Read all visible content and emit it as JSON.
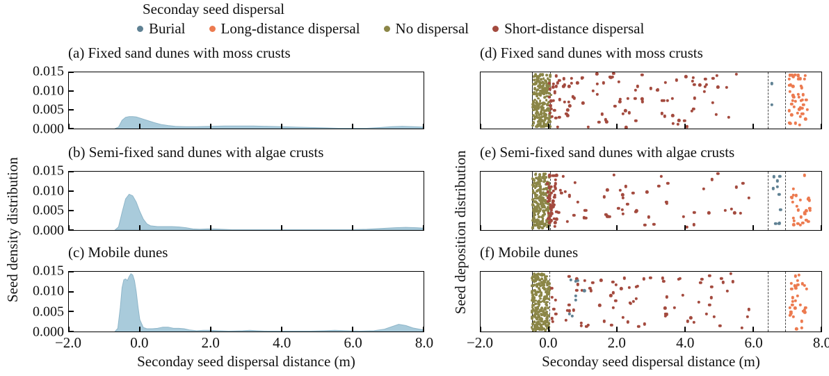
{
  "legend": {
    "title": "Seconday seed dispersal",
    "items": [
      {
        "label": "Burial",
        "color": "#5f8193"
      },
      {
        "label": "Long-distance dispersal",
        "color": "#ec7a4f"
      },
      {
        "label": "No dispersal",
        "color": "#8b8647"
      },
      {
        "label": "Short-distance dispersal",
        "color": "#a34a3e"
      }
    ]
  },
  "axes": {
    "x_label": "Seconday seed dispersal distance (m)",
    "x_range": [
      -2,
      8
    ],
    "x_ticks": [
      "−2.0",
      "0.0",
      "2.0",
      "4.0",
      "6.0",
      "8.0"
    ],
    "x_tick_values": [
      -2,
      0,
      2,
      4,
      6,
      8
    ],
    "left_y_label": "Seed density distribution",
    "right_y_label": "Seed deposition distribution",
    "left_y_range": [
      0,
      0.015
    ],
    "left_y_ticks": [
      "0.000",
      "0.005",
      "0.010",
      "0.015"
    ],
    "left_y_tick_values": [
      0,
      0.005,
      0.01,
      0.015
    ],
    "area_fill_color": "#a9cbdb",
    "area_edge_color": "#8fb6c9"
  },
  "chart_data": [
    {
      "id": "a",
      "type": "area",
      "title": "(a) Fixed sand dunes with moss crusts",
      "points": [
        [
          -0.7,
          0
        ],
        [
          -0.6,
          0.0004
        ],
        [
          -0.5,
          0.0022
        ],
        [
          -0.4,
          0.003
        ],
        [
          -0.3,
          0.0032
        ],
        [
          -0.2,
          0.0032
        ],
        [
          -0.1,
          0.0031
        ],
        [
          0,
          0.0028
        ],
        [
          0.2,
          0.0022
        ],
        [
          0.4,
          0.0016
        ],
        [
          0.6,
          0.0011
        ],
        [
          0.8,
          0.0008
        ],
        [
          1.0,
          0.0006
        ],
        [
          1.3,
          0.0005
        ],
        [
          1.6,
          0.0005
        ],
        [
          2.0,
          0.0006
        ],
        [
          2.4,
          0.0007
        ],
        [
          2.8,
          0.0007
        ],
        [
          3.2,
          0.0007
        ],
        [
          3.6,
          0.0006
        ],
        [
          4.0,
          0.0005
        ],
        [
          4.4,
          0.0004
        ],
        [
          4.8,
          0.0003
        ],
        [
          5.2,
          0.0002
        ],
        [
          5.6,
          0.0001
        ],
        [
          6.0,
          0.0001
        ],
        [
          6.4,
          0.0001
        ],
        [
          6.8,
          0.0003
        ],
        [
          7.1,
          0.0005
        ],
        [
          7.4,
          0.0006
        ],
        [
          7.7,
          0.0005
        ],
        [
          8.0,
          0.0004
        ]
      ]
    },
    {
      "id": "b",
      "type": "area",
      "title": "(b) Semi-fixed sand dunes with algae crusts",
      "points": [
        [
          -0.7,
          0
        ],
        [
          -0.6,
          0.0008
        ],
        [
          -0.5,
          0.0045
        ],
        [
          -0.4,
          0.008
        ],
        [
          -0.3,
          0.0092
        ],
        [
          -0.2,
          0.0088
        ],
        [
          -0.1,
          0.0072
        ],
        [
          0,
          0.0048
        ],
        [
          0.1,
          0.0028
        ],
        [
          0.2,
          0.0016
        ],
        [
          0.3,
          0.0011
        ],
        [
          0.5,
          0.0009
        ],
        [
          0.7,
          0.0009
        ],
        [
          0.9,
          0.0009
        ],
        [
          1.1,
          0.0008
        ],
        [
          1.3,
          0.0006
        ],
        [
          1.5,
          0.0003
        ],
        [
          1.7,
          0.0002
        ],
        [
          1.9,
          0.0003
        ],
        [
          2.1,
          0.0003
        ],
        [
          2.3,
          0.0002
        ],
        [
          2.6,
          0.0001
        ],
        [
          3.0,
          0.0001
        ],
        [
          3.5,
          0.0001
        ],
        [
          4.0,
          0.0001
        ],
        [
          4.5,
          0.0001
        ],
        [
          5.0,
          0.0001
        ],
        [
          5.5,
          0.0001
        ],
        [
          6.0,
          0.0001
        ],
        [
          6.4,
          0.0002
        ],
        [
          6.8,
          0.0004
        ],
        [
          7.2,
          0.0006
        ],
        [
          7.5,
          0.0007
        ],
        [
          7.8,
          0.0006
        ],
        [
          8.0,
          0.0005
        ]
      ]
    },
    {
      "id": "c",
      "type": "area",
      "title": "(c) Mobile dunes",
      "points": [
        [
          -0.7,
          0
        ],
        [
          -0.62,
          0.0008
        ],
        [
          -0.55,
          0.006
        ],
        [
          -0.5,
          0.011
        ],
        [
          -0.45,
          0.013
        ],
        [
          -0.4,
          0.0132
        ],
        [
          -0.35,
          0.0128
        ],
        [
          -0.3,
          0.0138
        ],
        [
          -0.25,
          0.0145
        ],
        [
          -0.2,
          0.0142
        ],
        [
          -0.15,
          0.0128
        ],
        [
          -0.1,
          0.01
        ],
        [
          -0.05,
          0.0062
        ],
        [
          0,
          0.003
        ],
        [
          0.1,
          0.001
        ],
        [
          0.2,
          0.0007
        ],
        [
          0.35,
          0.0007
        ],
        [
          0.5,
          0.0008
        ],
        [
          0.65,
          0.0011
        ],
        [
          0.8,
          0.0011
        ],
        [
          0.95,
          0.0008
        ],
        [
          1.1,
          0.0008
        ],
        [
          1.25,
          0.0007
        ],
        [
          1.4,
          0.0004
        ],
        [
          1.6,
          0.0002
        ],
        [
          1.8,
          0.0003
        ],
        [
          2.0,
          0.0003
        ],
        [
          2.2,
          0.0002
        ],
        [
          2.5,
          0.0001
        ],
        [
          2.9,
          0.0002
        ],
        [
          3.1,
          0.0003
        ],
        [
          3.3,
          0.0002
        ],
        [
          3.6,
          0.0001
        ],
        [
          4.0,
          0.0001
        ],
        [
          4.4,
          0.0001
        ],
        [
          4.8,
          0.0001
        ],
        [
          5.2,
          0.0002
        ],
        [
          5.5,
          0.0003
        ],
        [
          5.8,
          0.0002
        ],
        [
          6.2,
          0.0001
        ],
        [
          6.6,
          0.0002
        ],
        [
          6.9,
          0.0006
        ],
        [
          7.1,
          0.0012
        ],
        [
          7.3,
          0.0018
        ],
        [
          7.5,
          0.0015
        ],
        [
          7.7,
          0.0009
        ],
        [
          8.0,
          0.0004
        ]
      ]
    },
    {
      "id": "d",
      "type": "scatter-strip",
      "title": "(d) Fixed sand dunes with moss crusts",
      "guide_lines": [
        {
          "x": -0.5,
          "style": "solid"
        },
        {
          "x": 0.05,
          "style": "dashed"
        },
        {
          "x": 6.42,
          "style": "dashed"
        },
        {
          "x": 6.93,
          "style": "dashed"
        }
      ],
      "clusters": [
        {
          "series": "No dispersal",
          "n": 225,
          "x": [
            -0.47,
            0.06
          ],
          "y": [
            0.03,
            0.98
          ],
          "r": 3.8
        },
        {
          "series": "Short-distance dispersal",
          "n": 108,
          "x": [
            0.02,
            5.6
          ],
          "y": [
            0.02,
            0.98
          ],
          "bias": 1.6
        },
        {
          "series": "Burial",
          "points": [
            [
              6.55,
              0.2
            ],
            [
              6.55,
              0.58
            ]
          ]
        },
        {
          "series": "Long-distance dispersal",
          "n": 46,
          "x": [
            7.05,
            7.62
          ],
          "y": [
            0.04,
            0.97
          ]
        }
      ]
    },
    {
      "id": "e",
      "type": "scatter-strip",
      "title": "(e) Semi-fixed sand dunes with algae crusts",
      "guide_lines": [
        {
          "x": -0.5,
          "style": "solid"
        },
        {
          "x": 0.05,
          "style": "dashed"
        },
        {
          "x": 6.42,
          "style": "dashed"
        },
        {
          "x": 6.93,
          "style": "dashed"
        }
      ],
      "clusters": [
        {
          "series": "No dispersal",
          "n": 235,
          "x": [
            -0.48,
            0.04
          ],
          "y": [
            0.03,
            0.98
          ],
          "r": 3.8
        },
        {
          "series": "Short-distance dispersal",
          "n": 42,
          "x": [
            -0.04,
            0.2
          ],
          "y": [
            0.05,
            0.98
          ]
        },
        {
          "series": "Short-distance dispersal",
          "n": 62,
          "x": [
            0.2,
            5.9
          ],
          "y": [
            0.03,
            0.97
          ],
          "bias": 1.5
        },
        {
          "series": "Burial",
          "n": 10,
          "x": [
            6.55,
            6.8
          ],
          "y": [
            0.08,
            0.97
          ]
        },
        {
          "series": "Long-distance dispersal",
          "n": 27,
          "x": [
            7.1,
            7.68
          ],
          "y": [
            0.05,
            0.96
          ]
        }
      ]
    },
    {
      "id": "f",
      "type": "scatter-strip",
      "title": "(f) Mobile dunes",
      "guide_lines": [
        {
          "x": -0.5,
          "style": "solid"
        },
        {
          "x": 0.02,
          "style": "dashed"
        },
        {
          "x": 6.42,
          "style": "dashed"
        },
        {
          "x": 6.93,
          "style": "dashed"
        }
      ],
      "clusters": [
        {
          "series": "No dispersal",
          "n": 255,
          "x": [
            -0.5,
            0.02
          ],
          "y": [
            0.03,
            0.98
          ],
          "r": 3.8
        },
        {
          "series": "Short-distance dispersal",
          "n": 82,
          "x": [
            0.05,
            5.9
          ],
          "y": [
            0.03,
            0.97
          ],
          "bias": 1.2
        },
        {
          "series": "Burial",
          "n": 8,
          "x": [
            0.45,
            1.15
          ],
          "y": [
            0.1,
            0.9
          ]
        },
        {
          "series": "Long-distance dispersal",
          "n": 33,
          "x": [
            7.05,
            7.6
          ],
          "y": [
            0.04,
            0.97
          ]
        }
      ]
    }
  ]
}
